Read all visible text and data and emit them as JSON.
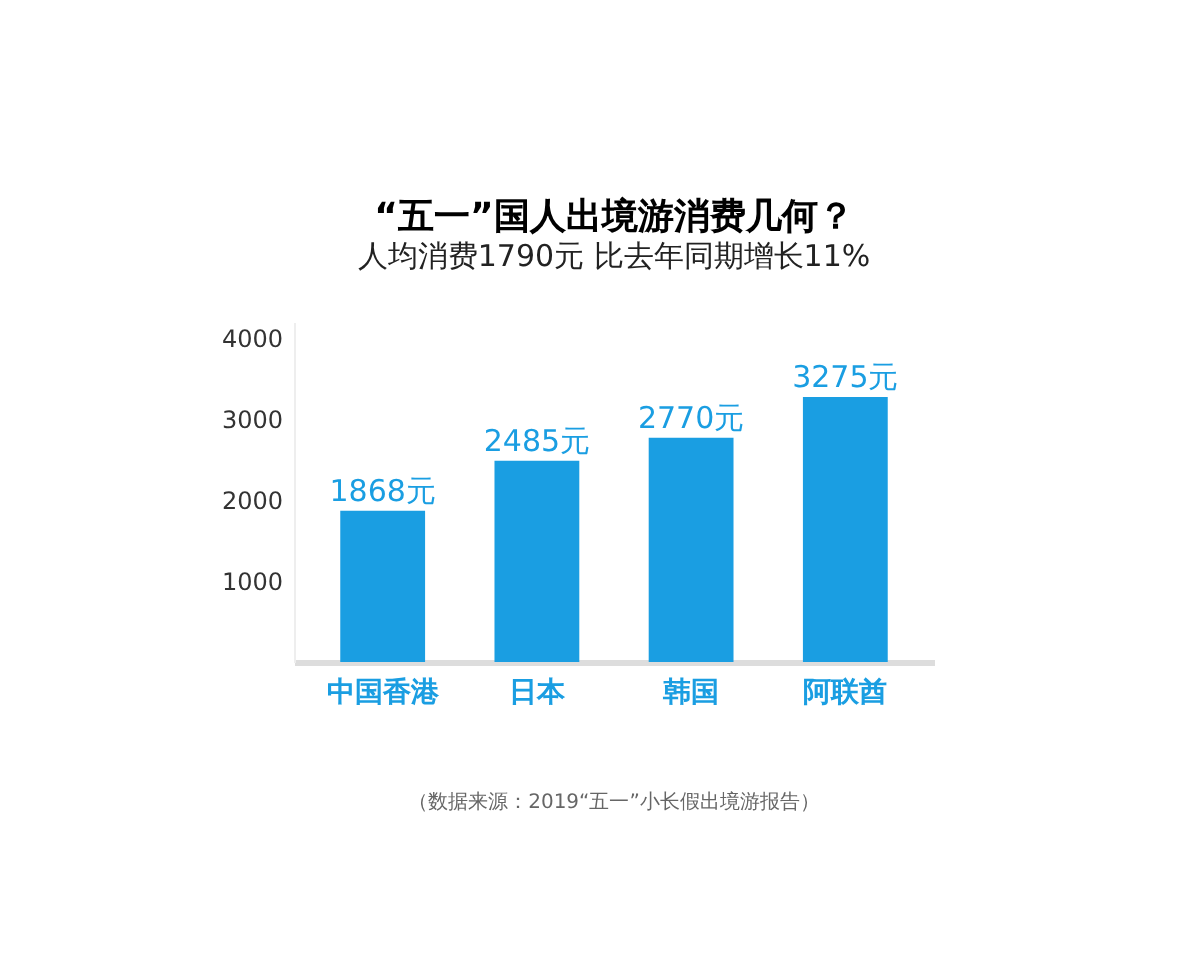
{
  "chart_data": {
    "type": "bar",
    "title": "“五一”国人出境游消费几何？",
    "subtitle": "人均消费1790元   比去年同期增长11%",
    "categories": [
      "中国香港",
      "日本",
      "韩国",
      "阿联酋"
    ],
    "values": [
      1868,
      2485,
      2770,
      3275
    ],
    "value_labels": [
      "1868元",
      "2485元",
      "2770元",
      "3275元"
    ],
    "color": "#1a9ee2",
    "ylim": [
      0,
      4200
    ],
    "yticks": [
      1000,
      2000,
      3000,
      4000
    ],
    "grid": false,
    "annotations": [
      "（数据来源：2019“五一”小长假出境游报告）"
    ]
  }
}
